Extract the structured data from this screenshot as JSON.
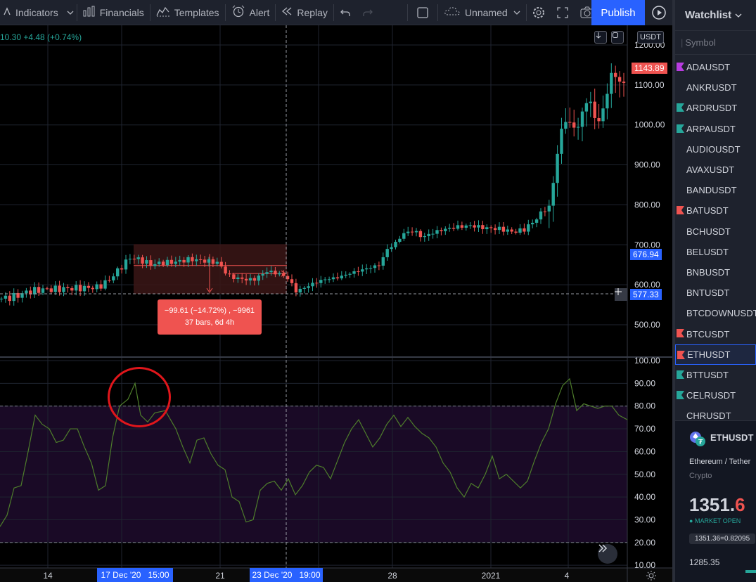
{
  "toolbar": {
    "indicators": "Indicators",
    "financials": "Financials",
    "templates": "Templates",
    "alert": "Alert",
    "replay": "Replay",
    "layout_name": "Unnamed",
    "publish": "Publish"
  },
  "chart": {
    "legend_values": "10.30  +4.48 (+0.74%)",
    "currency": "USDT",
    "price_axis": [
      "1200.00",
      "1100.00",
      "1000.00",
      "900.00",
      "800.00",
      "700.00",
      "600.00",
      "500.00"
    ],
    "rsi_axis": [
      "100.00",
      "90.00",
      "80.00",
      "70.00",
      "60.00",
      "50.00",
      "40.00",
      "30.00",
      "20.00",
      "10.00"
    ],
    "last_price_tag": "1143.89",
    "range_top_tag": "676.94",
    "crosshair_tag": "577.33",
    "measure_line1": "−99.61 (−14.72%) , −9961",
    "measure_line2": "37 bars, 6d 4h",
    "time_axis": [
      "14",
      "21",
      "28",
      "2021",
      "4"
    ],
    "time_highlight_1": "17 Dec '20   15:00",
    "time_highlight_2": "23 Dec '20   19:00",
    "colors": {
      "up": "#26a69a",
      "down": "#ef5350",
      "rsi_line": "#4e7d2b",
      "rsi_band": "#1a0a26",
      "annotation_circle": "#e0161b",
      "measure_box": "#3b1616",
      "accent": "#2962ff"
    }
  },
  "chart_data": {
    "type": "candlestick",
    "price_axis_ticks": [
      500,
      600,
      700,
      800,
      900,
      1000,
      1100,
      1200
    ],
    "rsi_axis_ticks": [
      10,
      20,
      30,
      40,
      50,
      60,
      70,
      80,
      90,
      100
    ],
    "last_price": 1143.89,
    "range_top": 676.94,
    "crosshair_price": 577.33,
    "measure_change": -99.61,
    "measure_change_pct": -14.72
  },
  "watchlist": {
    "title": "Watchlist",
    "symbol_header": "Symbol",
    "items": [
      {
        "name": "ADAUSDT",
        "flag": "#b83ce0"
      },
      {
        "name": "ANKRUSDT",
        "flag": ""
      },
      {
        "name": "ARDRUSDT",
        "flag": "#26a69a"
      },
      {
        "name": "ARPAUSDT",
        "flag": "#26a69a"
      },
      {
        "name": "AUDIOUSDT",
        "flag": ""
      },
      {
        "name": "AVAXUSDT",
        "flag": ""
      },
      {
        "name": "BANDUSDT",
        "flag": ""
      },
      {
        "name": "BATUSDT",
        "flag": "#ef5350"
      },
      {
        "name": "BCHUSDT",
        "flag": ""
      },
      {
        "name": "BELUSDT",
        "flag": ""
      },
      {
        "name": "BNBUSDT",
        "flag": ""
      },
      {
        "name": "BNTUSDT",
        "flag": ""
      },
      {
        "name": "BTCDOWNUSDT",
        "flag": ""
      },
      {
        "name": "BTCUSDT",
        "flag": "#ef5350"
      },
      {
        "name": "ETHUSDT",
        "flag": "#ef5350",
        "selected": true
      },
      {
        "name": "BTTUSDT",
        "flag": "#26a69a"
      },
      {
        "name": "CELRUSDT",
        "flag": "#26a69a"
      },
      {
        "name": "CHRUSDT",
        "flag": ""
      }
    ],
    "detail": {
      "symbol": "ETHUSDT",
      "description": "Ethereum / Tether",
      "type": "Crypto",
      "price_main": "1351.",
      "price_tail": "6",
      "status": "MARKET OPEN",
      "quote": "1351.36=0.82095",
      "prev": "1285.35"
    }
  }
}
